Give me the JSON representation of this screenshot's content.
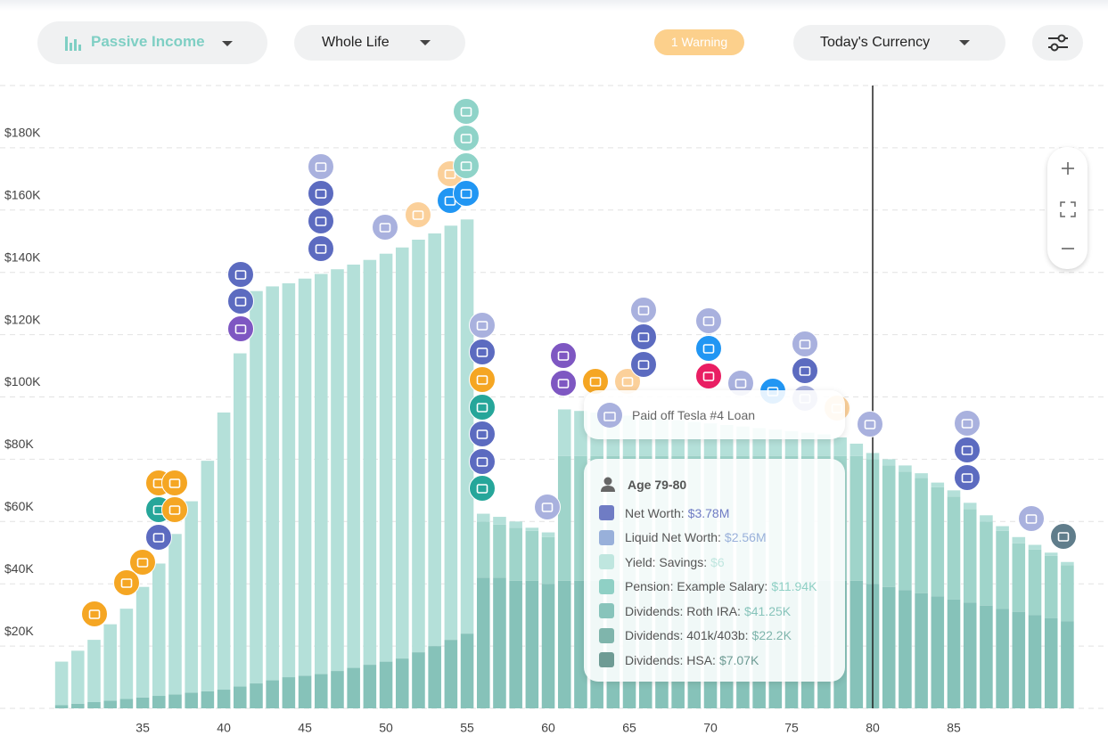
{
  "toolbar": {
    "view": "Passive Income",
    "range": "Whole Life",
    "warning": "1 Warning",
    "currency": "Today's Currency"
  },
  "chart_data": {
    "type": "bar",
    "stacked": true,
    "x": [
      30,
      31,
      32,
      33,
      34,
      35,
      36,
      37,
      38,
      39,
      40,
      41,
      42,
      43,
      44,
      45,
      46,
      47,
      48,
      49,
      50,
      51,
      52,
      53,
      54,
      55,
      56,
      57,
      58,
      59,
      60,
      61,
      62,
      63,
      64,
      65,
      66,
      67,
      68,
      69,
      70,
      71,
      72,
      73,
      74,
      75,
      76,
      77,
      78,
      79,
      80,
      81,
      82,
      83,
      84,
      85,
      86,
      87,
      88,
      89,
      90,
      91,
      92
    ],
    "xlim": [
      29.5,
      92.5
    ],
    "xticks": [
      35,
      40,
      45,
      50,
      55,
      60,
      65,
      70,
      75,
      80,
      85
    ],
    "ylim": [
      0,
      200000
    ],
    "yticks": [
      {
        "value": 20000,
        "label": "$20K"
      },
      {
        "value": 40000,
        "label": "$40K"
      },
      {
        "value": 60000,
        "label": "$60K"
      },
      {
        "value": 80000,
        "label": "$80K"
      },
      {
        "value": 100000,
        "label": "$100K"
      },
      {
        "value": 120000,
        "label": "$120K"
      },
      {
        "value": 140000,
        "label": "$140K"
      },
      {
        "value": 160000,
        "label": "$160K"
      },
      {
        "value": 180000,
        "label": "$180K"
      }
    ],
    "grid": true,
    "marker_x": 80,
    "series": [
      {
        "color": "#86c2b9",
        "values": [
          1000,
          1500,
          2000,
          2500,
          3000,
          3500,
          4000,
          4500,
          5000,
          5500,
          6000,
          7000,
          8000,
          9000,
          10000,
          10500,
          11000,
          12000,
          13000,
          14000,
          15000,
          16000,
          18000,
          20000,
          22000,
          24000,
          42000,
          42000,
          41000,
          41000,
          40000,
          41000,
          41000,
          41000,
          41000,
          41000,
          41000,
          41000,
          41000,
          41000,
          41000,
          41000,
          41000,
          41000,
          41000,
          41000,
          41000,
          41000,
          41000,
          41000,
          40000,
          39000,
          38000,
          37000,
          36000,
          35000,
          34000,
          33000,
          32000,
          31000,
          30000,
          29000,
          28000
        ]
      },
      {
        "color": "#9fd4ca",
        "values": [
          0,
          0,
          0,
          0,
          0,
          0,
          0,
          0,
          0,
          0,
          0,
          0,
          0,
          0,
          0,
          0,
          0,
          0,
          0,
          0,
          0,
          0,
          0,
          0,
          0,
          0,
          18000,
          17000,
          17000,
          16000,
          15000,
          40000,
          40000,
          40000,
          40000,
          40000,
          40000,
          40000,
          40000,
          40000,
          40000,
          40000,
          40000,
          40000,
          40000,
          40000,
          40000,
          40000,
          40000,
          40000,
          40000,
          39000,
          38000,
          37000,
          35000,
          33000,
          30000,
          27000,
          25000,
          22000,
          21000,
          20000,
          18000
        ]
      },
      {
        "color": "#b4e0d9",
        "values": [
          14000,
          17000,
          20000,
          24500,
          29000,
          35500,
          42500,
          51500,
          61500,
          74000,
          89000,
          107000,
          126000,
          126500,
          126500,
          127500,
          128500,
          129000,
          129500,
          130000,
          131000,
          132000,
          132500,
          132500,
          133000,
          133000,
          2500,
          2500,
          2000,
          1000,
          1500,
          15000,
          14500,
          14000,
          13500,
          13000,
          12500,
          12000,
          11500,
          11000,
          10500,
          10000,
          9500,
          9000,
          8500,
          8000,
          7500,
          7000,
          6000,
          4000,
          2000,
          2000,
          2000,
          1500,
          1500,
          2000,
          2000,
          2000,
          1500,
          2000,
          1500,
          1000,
          1000
        ]
      }
    ]
  },
  "event_tooltip": {
    "text": "Paid off Tesla #4 Loan"
  },
  "age_tooltip": {
    "title": "Age 79-80",
    "items": [
      {
        "name": "Net Worth:",
        "value": "$3.78M",
        "color": "#6f7cc4"
      },
      {
        "name": "Liquid Net Worth:",
        "value": "$2.56M",
        "color": "#98b0da"
      },
      {
        "name": "Yield: Savings:",
        "value": "$6",
        "color": "#bfe6df"
      },
      {
        "name": "Pension: Example Salary:",
        "value": "$11.94K",
        "color": "#8fd0c5"
      },
      {
        "name": "Dividends: Roth IRA:",
        "value": "$41.25K",
        "color": "#88c4bb"
      },
      {
        "name": "Dividends: 401k/403b:",
        "value": "$22.2K",
        "color": "#7fb5ac"
      },
      {
        "name": "Dividends: HSA:",
        "value": "$7.07K",
        "color": "#6e9b94"
      }
    ]
  }
}
